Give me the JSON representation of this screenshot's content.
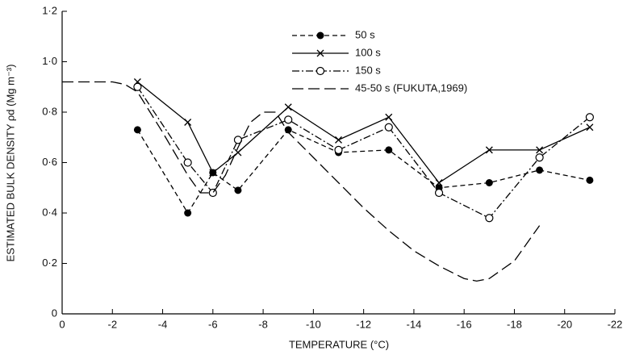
{
  "chart_data": {
    "type": "line",
    "xlabel": "TEMPERATURE (°C)",
    "ylabel": "ESTIMATED BULK DENSITY ρd (Mg m⁻³)",
    "xlim": [
      0,
      -22
    ],
    "xticks": [
      0,
      -2,
      -4,
      -6,
      -8,
      -10,
      -12,
      -14,
      -16,
      -18,
      -20,
      -22
    ],
    "ylim": [
      0,
      1.2
    ],
    "yticks": [
      0,
      {
        "value": 0.2,
        "label": "0·2"
      },
      {
        "value": 0.4,
        "label": "0·4"
      },
      {
        "value": 0.6,
        "label": "0·6"
      },
      {
        "value": 0.8,
        "label": "0·8"
      },
      {
        "value": 1.0,
        "label": "1·0"
      },
      {
        "value": 1.2,
        "label": "1·2"
      }
    ],
    "grid": false,
    "legend": "top-center",
    "series": [
      {
        "name": "50 s",
        "color": "#000000",
        "style": "dashed",
        "marker": "filled-circle",
        "x": [
          -3,
          -5,
          -6,
          -7,
          -9,
          -11,
          -13,
          -15,
          -17,
          -19,
          -21
        ],
        "values": [
          0.73,
          0.4,
          0.56,
          0.49,
          0.73,
          0.64,
          0.65,
          0.5,
          0.52,
          0.57,
          0.53
        ]
      },
      {
        "name": "100 s",
        "color": "#000000",
        "style": "solid",
        "marker": "cross",
        "x": [
          -3,
          -5,
          -6,
          -7,
          -9,
          -11,
          -13,
          -15,
          -17,
          -19,
          -21
        ],
        "values": [
          0.92,
          0.76,
          0.56,
          0.64,
          0.82,
          0.69,
          0.78,
          0.52,
          0.65,
          0.65,
          0.74
        ]
      },
      {
        "name": "150 s",
        "color": "#000000",
        "style": "dash-dot",
        "marker": "open-circle",
        "x": [
          -3,
          -5,
          -6,
          -7,
          -9,
          -11,
          -13,
          -15,
          -17,
          -19,
          -21
        ],
        "values": [
          0.9,
          0.6,
          0.48,
          0.69,
          0.77,
          0.65,
          0.74,
          0.48,
          0.38,
          0.62,
          0.78
        ]
      },
      {
        "name": "45-50 s (FUKUTA,1969)",
        "color": "#000000",
        "style": "long-dash",
        "x": [
          0,
          -2,
          -2.5,
          -3,
          -4,
          -5,
          -5.5,
          -6,
          -6.5,
          -7,
          -7.5,
          -8,
          -8.5,
          -9,
          -10,
          -11,
          -12,
          -13,
          -14,
          -15,
          -16,
          -16.5,
          -17,
          -18,
          -19
        ],
        "values": [
          0.92,
          0.92,
          0.91,
          0.88,
          0.72,
          0.55,
          0.48,
          0.48,
          0.55,
          0.66,
          0.76,
          0.8,
          0.8,
          0.72,
          0.62,
          0.52,
          0.42,
          0.33,
          0.25,
          0.19,
          0.14,
          0.13,
          0.14,
          0.21,
          0.35
        ]
      }
    ]
  }
}
